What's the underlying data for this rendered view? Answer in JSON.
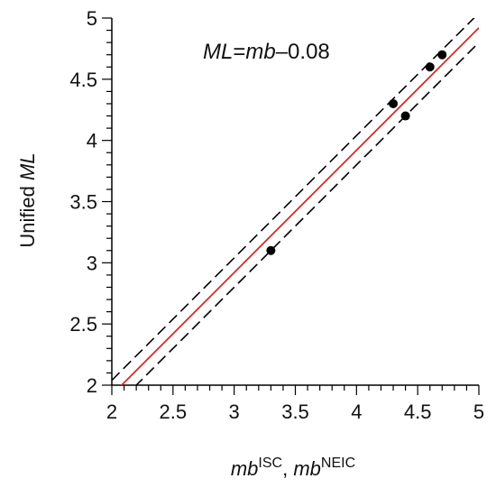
{
  "chart_data": {
    "type": "scatter",
    "xlim": [
      2,
      5
    ],
    "ylim": [
      2,
      5
    ],
    "x_ticks": [
      "2",
      "2.5",
      "3",
      "3.5",
      "4",
      "4.5",
      "5"
    ],
    "y_ticks": [
      "2",
      "2.5",
      "3",
      "3.5",
      "4",
      "4.5",
      "5"
    ],
    "xlabel": {
      "part1": "mb",
      "sup1": "ISC",
      "sep": ", ",
      "part2": "mb",
      "sup2": "NEIC"
    },
    "ylabel": {
      "prefix": "Unified ",
      "italic": "ML"
    },
    "annotation": {
      "lhs": "ML",
      "eq": "=",
      "rhs": "mb",
      "rest": "–0.08"
    },
    "points": [
      {
        "x": 3.3,
        "y": 3.1
      },
      {
        "x": 4.3,
        "y": 4.3
      },
      {
        "x": 4.4,
        "y": 4.2
      },
      {
        "x": 4.6,
        "y": 4.6
      },
      {
        "x": 4.7,
        "y": 4.7
      }
    ],
    "fit_line": {
      "slope": 1,
      "intercept": -0.08,
      "color": "#d62728"
    },
    "confidence_bands": {
      "offset": 0.12,
      "color": "#000000",
      "dash": "dashed"
    },
    "grid": false
  }
}
